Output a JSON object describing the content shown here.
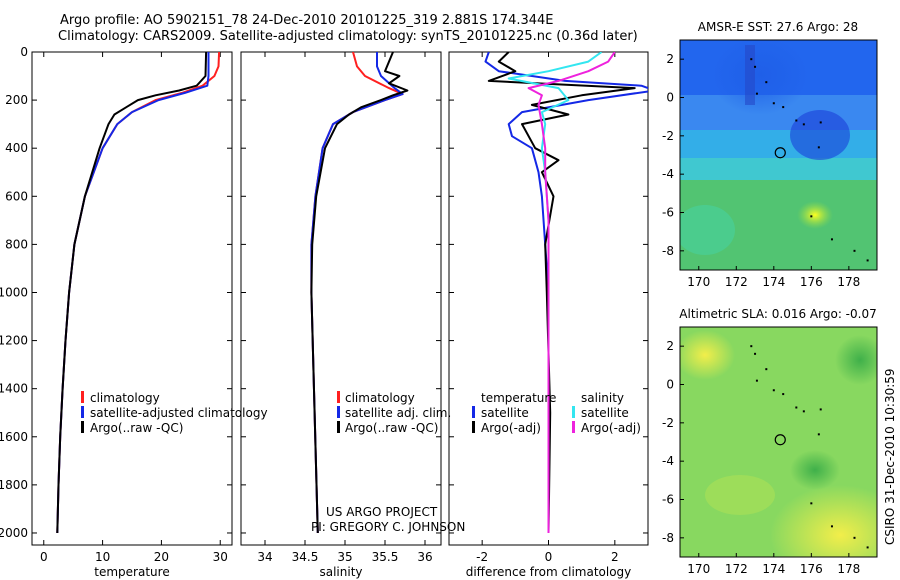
{
  "header": {
    "title_line1": "Argo profile: AO 5902151_78 24-Dec-2010 20101225_319 2.881S 174.344E",
    "title_line2": "Climatology: CARS2009. Satellite-adjusted climatology: synTS_20101225.nc (0.36d later)"
  },
  "colors": {
    "climatology": "#ff2020",
    "satellite": "#1428e6",
    "argo": "#000000",
    "cyan": "#33e6f0",
    "magenta": "#ee22dd"
  },
  "chart_data": [
    {
      "type": "line",
      "name": "temperature-profile",
      "xlabel": "temperature",
      "ylabel": "",
      "xlim": [
        -2,
        32
      ],
      "ylim": [
        2050,
        0
      ],
      "xticks": [
        0,
        10,
        20,
        30
      ],
      "yticks": [
        0,
        200,
        400,
        600,
        800,
        1000,
        1200,
        1400,
        1600,
        1800,
        2000
      ],
      "legend": [
        "climatology",
        "satellite-adjusted climatology",
        "Argo(..raw -QC)"
      ],
      "series": [
        {
          "name": "climatology",
          "color": "#ff2020",
          "depth": [
            0,
            60,
            100,
            140,
            170,
            200,
            250,
            300,
            400,
            600,
            800,
            1000,
            1200,
            1400,
            1600,
            1800,
            2000
          ],
          "values": [
            29.8,
            29.7,
            29.0,
            27.0,
            23.5,
            19.0,
            15.0,
            12.5,
            10.0,
            7.0,
            5.2,
            4.3,
            3.7,
            3.2,
            2.8,
            2.5,
            2.3
          ]
        },
        {
          "name": "satellite-adjusted climatology",
          "color": "#1428e6",
          "depth": [
            0,
            60,
            100,
            140,
            170,
            200,
            250,
            300,
            400,
            600,
            800,
            1000,
            1200,
            1400,
            1600,
            1800,
            2000
          ],
          "values": [
            28.0,
            28.0,
            28.0,
            27.8,
            24.0,
            19.5,
            15.0,
            12.5,
            10.0,
            7.0,
            5.2,
            4.3,
            3.7,
            3.2,
            2.8,
            2.5,
            2.3
          ]
        },
        {
          "name": "Argo(..raw -QC)",
          "color": "#000000",
          "depth": [
            0,
            100,
            140,
            160,
            180,
            200,
            230,
            260,
            300,
            400,
            600,
            800,
            1000,
            1200,
            1400,
            1600,
            1800,
            2000
          ],
          "values": [
            27.6,
            27.5,
            26.0,
            23.0,
            19.0,
            16.0,
            14.0,
            12.0,
            11.0,
            9.5,
            7.0,
            5.2,
            4.3,
            3.7,
            3.2,
            2.8,
            2.5,
            2.3
          ]
        }
      ]
    },
    {
      "type": "line",
      "name": "salinity-profile",
      "xlabel": "salinity",
      "xlim": [
        33.7,
        36.2
      ],
      "ylim": [
        2050,
        0
      ],
      "xticks": [
        34,
        34.5,
        35,
        35.5,
        36
      ],
      "legend": [
        "climatology",
        "satellite adj. clim.",
        "Argo(..raw -QC)"
      ],
      "series": [
        {
          "name": "climatology",
          "color": "#ff2020",
          "depth": [
            0,
            60,
            100,
            150,
            175,
            200,
            250,
            300,
            400,
            600,
            800,
            1000,
            1500,
            2000
          ],
          "values": [
            35.1,
            35.15,
            35.25,
            35.55,
            35.72,
            35.5,
            35.1,
            34.85,
            34.72,
            34.63,
            34.58,
            34.58,
            34.62,
            34.66
          ]
        },
        {
          "name": "satellite adj. clim.",
          "color": "#1428e6",
          "depth": [
            0,
            60,
            100,
            150,
            175,
            200,
            250,
            300,
            400,
            600,
            800,
            1000,
            1500,
            2000
          ],
          "values": [
            35.4,
            35.4,
            35.45,
            35.62,
            35.72,
            35.5,
            35.1,
            34.85,
            34.72,
            34.63,
            34.58,
            34.58,
            34.62,
            34.66
          ]
        },
        {
          "name": "Argo(..raw -QC)",
          "color": "#000000",
          "depth": [
            0,
            40,
            80,
            100,
            130,
            160,
            180,
            200,
            230,
            260,
            300,
            400,
            600,
            800,
            1000,
            1500,
            2000
          ],
          "values": [
            35.6,
            35.55,
            35.5,
            35.68,
            35.55,
            35.78,
            35.6,
            35.45,
            35.2,
            35.05,
            34.9,
            34.75,
            34.64,
            34.59,
            34.58,
            34.62,
            34.66
          ]
        }
      ]
    },
    {
      "type": "line",
      "name": "difference-profile",
      "xlabel": "difference from climatology",
      "xlim": [
        -3,
        3
      ],
      "ylim": [
        2050,
        0
      ],
      "xticks": [
        -2,
        0,
        2
      ],
      "legend_title_temperature": "temperature",
      "legend_title_salinity": "salinity",
      "legend_temperature": [
        "satellite",
        "Argo(-adj)"
      ],
      "legend_salinity": [
        "satellite",
        "Argo(-adj)"
      ],
      "series": [
        {
          "name": "temperature satellite",
          "color": "#1428e6",
          "depth": [
            0,
            40,
            80,
            120,
            140,
            160,
            200,
            250,
            300,
            350,
            400,
            500,
            600,
            800,
            1000,
            1500,
            2000
          ],
          "values": [
            -1.8,
            -1.9,
            -1.5,
            0.5,
            2.8,
            3.2,
            1.2,
            -0.8,
            -1.2,
            -1.1,
            -0.5,
            -0.3,
            -0.2,
            -0.1,
            0.0,
            0.0,
            0.0
          ]
        },
        {
          "name": "temperature Argo(-adj)",
          "color": "#000000",
          "depth": [
            0,
            40,
            80,
            120,
            150,
            180,
            220,
            260,
            300,
            400,
            450,
            500,
            600,
            800,
            1000,
            1500,
            2000
          ],
          "values": [
            -1.2,
            -1.5,
            -1.0,
            -1.8,
            2.6,
            1.0,
            -0.5,
            0.6,
            -0.8,
            -0.4,
            0.3,
            -0.2,
            0.15,
            -0.1,
            -0.05,
            0.05,
            0.0
          ]
        },
        {
          "name": "salinity satellite",
          "color": "#33e6f0",
          "depth": [
            0,
            40,
            80,
            110,
            150,
            200,
            250,
            300,
            400,
            500,
            700,
            1000,
            1500,
            2000
          ],
          "values": [
            1.6,
            1.2,
            0.0,
            -1.2,
            0.3,
            0.6,
            -0.2,
            -0.1,
            -0.2,
            -0.1,
            0.0,
            0.0,
            0.0,
            0.0
          ]
        },
        {
          "name": "salinity Argo(-adj)",
          "color": "#ee22dd",
          "depth": [
            0,
            40,
            80,
            120,
            150,
            180,
            220,
            300,
            400,
            500,
            700,
            1000,
            1500,
            2000
          ],
          "values": [
            2.0,
            1.8,
            1.2,
            0.3,
            -0.6,
            -0.2,
            -0.3,
            -0.2,
            -0.1,
            -0.1,
            0.0,
            0.0,
            0.0,
            0.0
          ]
        }
      ]
    },
    {
      "type": "heatmap",
      "name": "sst-map",
      "title": "AMSR-E SST: 27.6 Argo: 28",
      "xlim": [
        169,
        179.5
      ],
      "ylim": [
        -9,
        3
      ],
      "xticks": [
        170,
        172,
        174,
        176,
        178
      ],
      "yticks": [
        2,
        0,
        -2,
        -4,
        -6,
        -8
      ],
      "marker": {
        "lon": 174.344,
        "lat": -2.881
      }
    },
    {
      "type": "heatmap",
      "name": "sla-map",
      "title": "Altimetric SLA: 0.016 Argo: -0.07",
      "xlim": [
        169,
        179.5
      ],
      "ylim": [
        -9,
        3
      ],
      "xticks": [
        170,
        172,
        174,
        176,
        178
      ],
      "yticks": [
        2,
        0,
        -2,
        -4,
        -6,
        -8
      ],
      "marker": {
        "lon": 174.344,
        "lat": -2.881
      }
    }
  ],
  "annotations": {
    "project_line1": "US ARGO PROJECT",
    "project_line2": "PI: GREGORY C. JOHNSON",
    "credit": "CSIRO 31-Dec-2010 10:30:59"
  }
}
